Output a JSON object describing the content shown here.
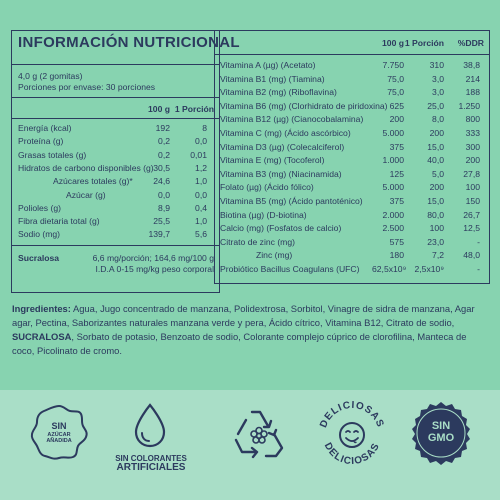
{
  "left": {
    "title": "INFORMACIÓN NUTRICIONAL",
    "serving_size": "4,0 g (2 gomitas)",
    "servings_per_container": "Porciones por envase: 30 porciones",
    "col_100g": "100 g",
    "col_portion": "1 Porción",
    "rows": [
      {
        "label": "Energía (kcal)",
        "v100": "192",
        "vpor": "8"
      },
      {
        "label": "Proteína (g)",
        "v100": "0,2",
        "vpor": "0,0"
      },
      {
        "label": "Grasas totales (g)",
        "v100": "0,2",
        "vpor": "0,01"
      },
      {
        "label": "Hidratos de carbono disponibles (g)",
        "v100": "30,5",
        "vpor": "1,2"
      },
      {
        "label": "Azúcares totales (g)*",
        "v100": "24,6",
        "vpor": "1,0"
      },
      {
        "label": "Azúcar (g)",
        "v100": "0,0",
        "vpor": "0,0"
      },
      {
        "label": "Polioles (g)",
        "v100": "8,9",
        "vpor": "0,4"
      },
      {
        "label": "Fibra dietaria total (g)",
        "v100": "25,5",
        "vpor": "1,0"
      },
      {
        "label": "Sodio (mg)",
        "v100": "139,7",
        "vpor": "5,6"
      }
    ],
    "sucralosa_label": "Sucralosa",
    "sucralosa_value": "6,6 mg/porción; 164,6 mg/100 g",
    "ida_value": "I.D.A 0-15 mg/kg peso corporal"
  },
  "right": {
    "col_100g": "100 g",
    "col_portion": "1 Porción",
    "col_ddr": "%DDR",
    "rows": [
      {
        "label": "Vitamina A (µg) (Acetato)",
        "v100": "7.750",
        "vpor": "310",
        "ddr": "38,8"
      },
      {
        "label": "Vitamina B1 (mg) (Tiamina)",
        "v100": "75,0",
        "vpor": "3,0",
        "ddr": "214"
      },
      {
        "label": "Vitamina B2 (mg) (Riboflavina)",
        "v100": "75,0",
        "vpor": "3,0",
        "ddr": "188"
      },
      {
        "label": "Vitamina B6 (mg) (Clorhidrato de piridoxina)",
        "v100": "625",
        "vpor": "25,0",
        "ddr": "1.250"
      },
      {
        "label": "Vitamina B12 (µg) (Cianocobalamina)",
        "v100": "200",
        "vpor": "8,0",
        "ddr": "800"
      },
      {
        "label": "Vitamina C (mg) (Ácido ascórbico)",
        "v100": "5.000",
        "vpor": "200",
        "ddr": "333"
      },
      {
        "label": "Vitamina D3 (µg) (Colecalciferol)",
        "v100": "375",
        "vpor": "15,0",
        "ddr": "300"
      },
      {
        "label": "Vitamina E (mg) (Tocoferol)",
        "v100": "1.000",
        "vpor": "40,0",
        "ddr": "200"
      },
      {
        "label": "Vitamina B3 (mg) (Niacinamida)",
        "v100": "125",
        "vpor": "5,0",
        "ddr": "27,8"
      },
      {
        "label": "Folato (µg) (Ácido fólico)",
        "v100": "5.000",
        "vpor": "200",
        "ddr": "100"
      },
      {
        "label": "Vitamina B5 (mg) (Ácido pantoténico)",
        "v100": "375",
        "vpor": "15,0",
        "ddr": "150"
      },
      {
        "label": "Biotina (µg) (D-biotina)",
        "v100": "2.000",
        "vpor": "80,0",
        "ddr": "26,7"
      },
      {
        "label": "Calcio (mg) (Fosfatos de calcio)",
        "v100": "2.500",
        "vpor": "100",
        "ddr": "12,5"
      },
      {
        "label": "Citrato de zinc (mg)",
        "v100": "575",
        "vpor": "23,0",
        "ddr": "-"
      },
      {
        "label": "Zinc (mg)",
        "v100": "180",
        "vpor": "7,2",
        "ddr": "48,0"
      },
      {
        "label": "Probiótico Bacillus Coagulans (UFC)",
        "v100": "62,5x10⁹",
        "vpor": "2,5x10⁹",
        "ddr": "-"
      }
    ]
  },
  "ingredients": {
    "label": "Ingredientes:",
    "text_before": " Agua, Jugo concentrado de manzana, Polidextrosa, Sorbitol, Vinagre de sidra de manzana, Agar agar, Pectina, Saborizantes naturales manzana verde y pera, Ácido cítrico, Vitamina B12, Citrato de sodio, ",
    "highlight": "SUCRALOSA",
    "text_after": ", Sorbato de potasio, Benzoato de sodio, Colorante complejo cúprico de clorofilina, Manteca de coco, Picolinato de cromo."
  },
  "badges": {
    "sin_azucar_line1": "SIN",
    "sin_azucar_line2": "AZÚCAR",
    "sin_azucar_line3": "AÑADIDA",
    "colorantes_line1": "SIN COLORANTES",
    "colorantes_line2": "ARTIFICIALES",
    "deliciosas_top": "DELICIOSAS",
    "deliciosas_bottom": "DELICIOSAS",
    "gmo_line1": "SIN",
    "gmo_line2": "GMO"
  },
  "colors": {
    "background": "#87d3b0",
    "footer": "#a9dec7",
    "ink": "#2c3a5e"
  }
}
